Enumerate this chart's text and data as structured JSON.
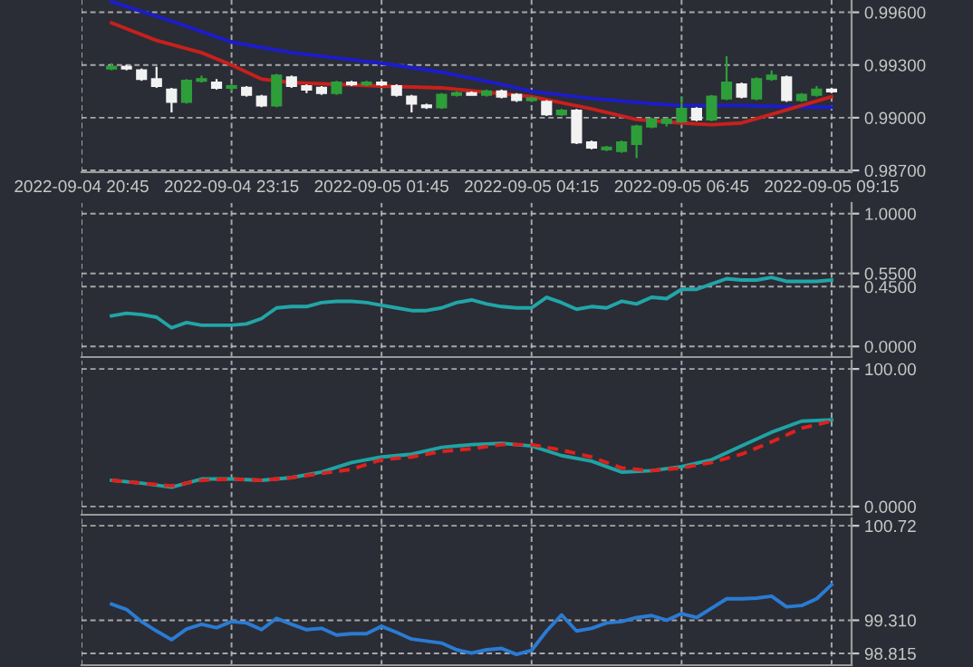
{
  "chart_data": [
    {
      "type": "candlestick",
      "x": [
        "2022-09-04T21:15",
        "2022-09-04T21:30",
        "2022-09-04T21:45",
        "2022-09-04T22:00",
        "2022-09-04T22:15",
        "2022-09-04T22:30",
        "2022-09-04T22:45",
        "2022-09-04T23:00",
        "2022-09-04T23:15",
        "2022-09-04T23:30",
        "2022-09-04T23:45",
        "2022-09-05T00:00",
        "2022-09-05T00:15",
        "2022-09-05T00:30",
        "2022-09-05T00:45",
        "2022-09-05T01:00",
        "2022-09-05T01:15",
        "2022-09-05T01:30",
        "2022-09-05T01:45",
        "2022-09-05T02:00",
        "2022-09-05T02:15",
        "2022-09-05T02:30",
        "2022-09-05T02:45",
        "2022-09-05T03:00",
        "2022-09-05T03:15",
        "2022-09-05T03:30",
        "2022-09-05T03:45",
        "2022-09-05T04:00",
        "2022-09-05T04:15",
        "2022-09-05T04:30",
        "2022-09-05T04:45",
        "2022-09-05T05:00",
        "2022-09-05T05:15",
        "2022-09-05T05:30",
        "2022-09-05T05:45",
        "2022-09-05T06:00",
        "2022-09-05T06:15",
        "2022-09-05T06:30",
        "2022-09-05T06:45",
        "2022-09-05T07:00",
        "2022-09-05T07:15",
        "2022-09-05T07:30",
        "2022-09-05T07:45",
        "2022-09-05T08:00",
        "2022-09-05T08:15",
        "2022-09-05T08:30",
        "2022-09-05T08:45",
        "2022-09-05T09:00",
        "2022-09-05T09:15"
      ],
      "ohlc": [
        [
          0.9928,
          0.9931,
          0.9927,
          0.9929
        ],
        [
          0.9929,
          0.993,
          0.9927,
          0.9928
        ],
        [
          0.9927,
          0.9928,
          0.9921,
          0.9922
        ],
        [
          0.9922,
          0.9929,
          0.9917,
          0.9918
        ],
        [
          0.9916,
          0.9917,
          0.9903,
          0.9909
        ],
        [
          0.9909,
          0.9922,
          0.9908,
          0.9921
        ],
        [
          0.9921,
          0.9924,
          0.992,
          0.9922
        ],
        [
          0.992,
          0.9922,
          0.9916,
          0.9917
        ],
        [
          0.9917,
          0.9919,
          0.9915,
          0.9918
        ],
        [
          0.9917,
          0.9918,
          0.9912,
          0.9913
        ],
        [
          0.9912,
          0.9913,
          0.9906,
          0.9907
        ],
        [
          0.9907,
          0.9925,
          0.9906,
          0.9924
        ],
        [
          0.9923,
          0.9924,
          0.9917,
          0.9918
        ],
        [
          0.9918,
          0.9919,
          0.9914,
          0.9916
        ],
        [
          0.9917,
          0.9918,
          0.9913,
          0.9914
        ],
        [
          0.9914,
          0.9921,
          0.9913,
          0.992
        ],
        [
          0.992,
          0.9921,
          0.9918,
          0.9919
        ],
        [
          0.9919,
          0.9921,
          0.9918,
          0.992
        ],
        [
          0.992,
          0.9921,
          0.9918,
          0.9919
        ],
        [
          0.9918,
          0.9919,
          0.9912,
          0.9913
        ],
        [
          0.9912,
          0.9913,
          0.9903,
          0.9908
        ],
        [
          0.9907,
          0.9908,
          0.9905,
          0.9906
        ],
        [
          0.9906,
          0.9914,
          0.9905,
          0.9913
        ],
        [
          0.9913,
          0.9915,
          0.9912,
          0.9914
        ],
        [
          0.9914,
          0.9915,
          0.9913,
          0.9913
        ],
        [
          0.9913,
          0.9916,
          0.9912,
          0.9915
        ],
        [
          0.9915,
          0.9916,
          0.9911,
          0.9912
        ],
        [
          0.9913,
          0.9914,
          0.9909,
          0.991
        ],
        [
          0.991,
          0.9912,
          0.9909,
          0.9911
        ],
        [
          0.9909,
          0.991,
          0.9901,
          0.9902
        ],
        [
          0.9902,
          0.9905,
          0.9901,
          0.9904
        ],
        [
          0.9904,
          0.9905,
          0.9885,
          0.9886
        ],
        [
          0.9886,
          0.9887,
          0.9882,
          0.9883
        ],
        [
          0.9882,
          0.9884,
          0.9881,
          0.9883
        ],
        [
          0.9881,
          0.9887,
          0.988,
          0.9886
        ],
        [
          0.9885,
          0.9896,
          0.9877,
          0.9895
        ],
        [
          0.9895,
          0.99,
          0.9894,
          0.9899
        ],
        [
          0.9897,
          0.99,
          0.9895,
          0.9899
        ],
        [
          0.9898,
          0.9912,
          0.9897,
          0.9905
        ],
        [
          0.9905,
          0.9906,
          0.9898,
          0.9899
        ],
        [
          0.9899,
          0.9913,
          0.9898,
          0.9912
        ],
        [
          0.9911,
          0.9935,
          0.991,
          0.992
        ],
        [
          0.9919,
          0.992,
          0.9911,
          0.9912
        ],
        [
          0.9911,
          0.9923,
          0.991,
          0.9922
        ],
        [
          0.9922,
          0.9927,
          0.9921,
          0.9924
        ],
        [
          0.9923,
          0.9924,
          0.9909,
          0.991
        ],
        [
          0.991,
          0.9914,
          0.9909,
          0.9913
        ],
        [
          0.9913,
          0.9918,
          0.9912,
          0.9916
        ],
        [
          0.9916,
          0.9917,
          0.9914,
          0.9915
        ]
      ],
      "colors": [
        "#2e9e3a",
        "#f2f2f2",
        "#f2f2f2",
        "#f2f2f2",
        "#f2f2f2",
        "#2e9e3a",
        "#2e9e3a",
        "#f2f2f2",
        "#2e9e3a",
        "#f2f2f2",
        "#f2f2f2",
        "#2e9e3a",
        "#f2f2f2",
        "#f2f2f2",
        "#f2f2f2",
        "#2e9e3a",
        "#f2f2f2",
        "#2e9e3a",
        "#f2f2f2",
        "#f2f2f2",
        "#f2f2f2",
        "#f2f2f2",
        "#2e9e3a",
        "#2e9e3a",
        "#f2f2f2",
        "#2e9e3a",
        "#f2f2f2",
        "#f2f2f2",
        "#2e9e3a",
        "#f2f2f2",
        "#2e9e3a",
        "#f2f2f2",
        "#f2f2f2",
        "#2e9e3a",
        "#2e9e3a",
        "#2e9e3a",
        "#2e9e3a",
        "#2e9e3a",
        "#2e9e3a",
        "#f2f2f2",
        "#2e9e3a",
        "#2e9e3a",
        "#f2f2f2",
        "#2e9e3a",
        "#2e9e3a",
        "#f2f2f2",
        "#2e9e3a",
        "#2e9e3a",
        "#f2f2f2"
      ],
      "series": [
        {
          "type": "line",
          "color": "#1c1ccc",
          "x": [
            "2022-09-04T21:15",
            "2022-09-04T22:15",
            "2022-09-04T23:15",
            "2022-09-05T00:15",
            "2022-09-05T01:15",
            "2022-09-05T01:45",
            "2022-09-05T02:45",
            "2022-09-05T03:45",
            "2022-09-05T04:15",
            "2022-09-05T05:15",
            "2022-09-05T06:15",
            "2022-09-05T06:45",
            "2022-09-05T07:45",
            "2022-09-05T08:45",
            "2022-09-05T09:15"
          ],
          "values": [
            0.9966,
            0.9955,
            0.9943,
            0.9937,
            0.9933,
            0.9931,
            0.9926,
            0.9919,
            0.9915,
            0.9911,
            0.9908,
            0.9907,
            0.9907,
            0.9906,
            0.9906
          ]
        },
        {
          "type": "line",
          "color": "#c8201c",
          "x": [
            "2022-09-04T21:15",
            "2022-09-04T22:00",
            "2022-09-04T22:45",
            "2022-09-04T23:15",
            "2022-09-04T23:45",
            "2022-09-05T00:15",
            "2022-09-05T01:45",
            "2022-09-05T02:45",
            "2022-09-05T04:15",
            "2022-09-05T05:15",
            "2022-09-05T06:00",
            "2022-09-05T06:45",
            "2022-09-05T07:15",
            "2022-09-05T07:45",
            "2022-09-05T08:15",
            "2022-09-05T08:45",
            "2022-09-05T09:15"
          ],
          "values": [
            0.9954,
            0.9944,
            0.9937,
            0.993,
            0.9922,
            0.992,
            0.9918,
            0.9917,
            0.9912,
            0.9905,
            0.9899,
            0.9897,
            0.9896,
            0.9897,
            0.9902,
            0.9907,
            0.9912
          ]
        }
      ],
      "xlim": [
        "2022-09-04T20:45",
        "2022-09-05T09:35"
      ],
      "xticks": [
        {
          "value": "2022-09-04T20:45",
          "label": "2022-09-04 20:45"
        },
        {
          "value": "2022-09-04T23:15",
          "label": "2022-09-04 23:15"
        },
        {
          "value": "2022-09-05T01:45",
          "label": "2022-09-05 01:45"
        },
        {
          "value": "2022-09-05T04:15",
          "label": "2022-09-05 04:15"
        },
        {
          "value": "2022-09-05T06:45",
          "label": "2022-09-05 06:45"
        },
        {
          "value": "2022-09-05T09:15",
          "label": "2022-09-05 09:15"
        }
      ],
      "ylim": [
        0.9869,
        0.9967
      ],
      "yticks": [
        {
          "value": 0.987,
          "label": "0.98700"
        },
        {
          "value": 0.99,
          "label": "0.99000"
        },
        {
          "value": 0.993,
          "label": "0.99300"
        },
        {
          "value": 0.996,
          "label": "0.99600"
        }
      ],
      "grid": true
    },
    {
      "type": "line",
      "x": [
        "2022-09-04T21:15",
        "2022-09-04T21:30",
        "2022-09-04T21:45",
        "2022-09-04T22:00",
        "2022-09-04T22:15",
        "2022-09-04T22:30",
        "2022-09-04T22:45",
        "2022-09-04T23:00",
        "2022-09-04T23:15",
        "2022-09-04T23:30",
        "2022-09-04T23:45",
        "2022-09-05T00:00",
        "2022-09-05T00:15",
        "2022-09-05T00:30",
        "2022-09-05T00:45",
        "2022-09-05T01:00",
        "2022-09-05T01:15",
        "2022-09-05T01:30",
        "2022-09-05T01:45",
        "2022-09-05T02:00",
        "2022-09-05T02:15",
        "2022-09-05T02:30",
        "2022-09-05T02:45",
        "2022-09-05T03:00",
        "2022-09-05T03:15",
        "2022-09-05T03:30",
        "2022-09-05T03:45",
        "2022-09-05T04:00",
        "2022-09-05T04:15",
        "2022-09-05T04:30",
        "2022-09-05T04:45",
        "2022-09-05T05:00",
        "2022-09-05T05:15",
        "2022-09-05T05:30",
        "2022-09-05T05:45",
        "2022-09-05T06:00",
        "2022-09-05T06:15",
        "2022-09-05T06:30",
        "2022-09-05T06:45",
        "2022-09-05T07:00",
        "2022-09-05T07:15",
        "2022-09-05T07:30",
        "2022-09-05T07:45",
        "2022-09-05T08:00",
        "2022-09-05T08:15",
        "2022-09-05T08:30",
        "2022-09-05T08:45",
        "2022-09-05T09:00",
        "2022-09-05T09:15"
      ],
      "series": [
        {
          "color": "#22a5a8",
          "values": [
            0.23,
            0.25,
            0.24,
            0.22,
            0.14,
            0.18,
            0.16,
            0.16,
            0.16,
            0.17,
            0.21,
            0.29,
            0.3,
            0.3,
            0.33,
            0.34,
            0.34,
            0.33,
            0.31,
            0.29,
            0.27,
            0.27,
            0.29,
            0.33,
            0.35,
            0.32,
            0.3,
            0.29,
            0.29,
            0.37,
            0.33,
            0.28,
            0.3,
            0.29,
            0.34,
            0.32,
            0.37,
            0.36,
            0.43,
            0.43,
            0.47,
            0.51,
            0.5,
            0.5,
            0.52,
            0.49,
            0.49,
            0.49,
            0.5
          ]
        }
      ],
      "xlim": [
        "2022-09-04T20:45",
        "2022-09-05T09:35"
      ],
      "xticks": [
        {
          "value": "2022-09-04T20:45",
          "label": null
        },
        {
          "value": "2022-09-04T23:15",
          "label": null
        },
        {
          "value": "2022-09-05T01:45",
          "label": null
        },
        {
          "value": "2022-09-05T04:15",
          "label": null
        },
        {
          "value": "2022-09-05T06:45",
          "label": null
        },
        {
          "value": "2022-09-05T09:15",
          "label": null
        }
      ],
      "ylim": [
        -0.08,
        1.08
      ],
      "yticks": [
        {
          "value": 0,
          "label": "0.0000"
        },
        {
          "value": 0.45,
          "label": "0.4500"
        },
        {
          "value": 0.55,
          "label": "0.5500"
        },
        {
          "value": 1,
          "label": "1.0000"
        }
      ],
      "tick_labels": "y",
      "grid": true
    },
    {
      "type": "line",
      "x": [
        "2022-09-04T21:15",
        "2022-09-04T21:45",
        "2022-09-04T22:15",
        "2022-09-04T22:45",
        "2022-09-04T23:15",
        "2022-09-04T23:45",
        "2022-09-05T00:15",
        "2022-09-05T00:45",
        "2022-09-05T01:15",
        "2022-09-05T01:45",
        "2022-09-05T02:15",
        "2022-09-05T02:45",
        "2022-09-05T03:15",
        "2022-09-05T03:45",
        "2022-09-05T04:15",
        "2022-09-05T04:45",
        "2022-09-05T05:15",
        "2022-09-05T05:45",
        "2022-09-05T06:15",
        "2022-09-05T06:45",
        "2022-09-05T07:15",
        "2022-09-05T07:45",
        "2022-09-05T08:15",
        "2022-09-05T08:45",
        "2022-09-05T09:15"
      ],
      "series": [
        {
          "color": "#1fa3a3",
          "values": [
            19,
            17,
            14,
            20,
            20,
            19,
            21,
            25,
            32,
            36,
            38,
            43,
            45,
            46,
            44,
            37,
            33,
            25,
            26,
            29,
            34,
            44,
            54,
            62,
            63
          ]
        },
        {
          "color": "#e0201c",
          "line_style": "dashed",
          "values": [
            19,
            17,
            15,
            19,
            20,
            19,
            21,
            24,
            27,
            34,
            36,
            40,
            42,
            45,
            45,
            41,
            36,
            28,
            26,
            28,
            32,
            38,
            47,
            57,
            62
          ]
        }
      ],
      "xlim": [
        "2022-09-04T20:45",
        "2022-09-05T09:35"
      ],
      "xticks": [
        {
          "value": "2022-09-04T20:45",
          "label": null
        },
        {
          "value": "2022-09-04T23:15",
          "label": null
        },
        {
          "value": "2022-09-05T01:45",
          "label": null
        },
        {
          "value": "2022-09-05T04:15",
          "label": null
        },
        {
          "value": "2022-09-05T06:45",
          "label": null
        },
        {
          "value": "2022-09-05T09:15",
          "label": null
        }
      ],
      "ylim": [
        -6,
        106
      ],
      "yticks": [
        {
          "value": 0,
          "label": "0.0000"
        },
        {
          "value": 100,
          "label": "100.00"
        }
      ],
      "tick_labels": "y",
      "grid": true
    },
    {
      "type": "line",
      "x": [
        "2022-09-04T21:15",
        "2022-09-04T21:30",
        "2022-09-04T21:45",
        "2022-09-04T22:00",
        "2022-09-04T22:15",
        "2022-09-04T22:30",
        "2022-09-04T22:45",
        "2022-09-04T23:00",
        "2022-09-04T23:15",
        "2022-09-04T23:30",
        "2022-09-04T23:45",
        "2022-09-05T00:00",
        "2022-09-05T00:15",
        "2022-09-05T00:30",
        "2022-09-05T00:45",
        "2022-09-05T01:00",
        "2022-09-05T01:15",
        "2022-09-05T01:30",
        "2022-09-05T01:45",
        "2022-09-05T02:00",
        "2022-09-05T02:15",
        "2022-09-05T02:30",
        "2022-09-05T02:45",
        "2022-09-05T03:00",
        "2022-09-05T03:15",
        "2022-09-05T03:30",
        "2022-09-05T03:45",
        "2022-09-05T04:00",
        "2022-09-05T04:15",
        "2022-09-05T04:30",
        "2022-09-05T04:45",
        "2022-09-05T05:00",
        "2022-09-05T05:15",
        "2022-09-05T05:30",
        "2022-09-05T05:45",
        "2022-09-05T06:00",
        "2022-09-05T06:15",
        "2022-09-05T06:30",
        "2022-09-05T06:45",
        "2022-09-05T07:00",
        "2022-09-05T07:15",
        "2022-09-05T07:30",
        "2022-09-05T07:45",
        "2022-09-05T08:00",
        "2022-09-05T08:15",
        "2022-09-05T08:30",
        "2022-09-05T08:45",
        "2022-09-05T09:00",
        "2022-09-05T09:15"
      ],
      "series": [
        {
          "color": "#2a7bd4",
          "values": [
            99.55,
            99.47,
            99.29,
            99.15,
            99.02,
            99.18,
            99.25,
            99.2,
            99.29,
            99.27,
            99.17,
            99.34,
            99.25,
            99.17,
            99.19,
            99.09,
            99.11,
            99.11,
            99.22,
            99.13,
            99.03,
            99.0,
            98.97,
            98.87,
            98.82,
            98.87,
            98.89,
            98.8,
            98.86,
            99.15,
            99.39,
            99.15,
            99.19,
            99.27,
            99.29,
            99.35,
            99.38,
            99.31,
            99.41,
            99.35,
            99.49,
            99.63,
            99.63,
            99.64,
            99.67,
            99.51,
            99.53,
            99.63,
            99.84
          ]
        }
      ],
      "xlim": [
        "2022-09-04T20:45",
        "2022-09-05T09:35"
      ],
      "xticks": [
        {
          "value": "2022-09-04T20:45",
          "label": null
        },
        {
          "value": "2022-09-04T23:15",
          "label": null
        },
        {
          "value": "2022-09-05T01:45",
          "label": null
        },
        {
          "value": "2022-09-05T04:15",
          "label": null
        },
        {
          "value": "2022-09-05T06:45",
          "label": null
        },
        {
          "value": "2022-09-05T09:15",
          "label": null
        }
      ],
      "ylim": [
        98.64,
        100.83
      ],
      "yticks": [
        {
          "value": 98.815,
          "label": "98.815"
        },
        {
          "value": 99.31,
          "label": "99.310"
        },
        {
          "value": 100.72,
          "label": "100.72"
        }
      ],
      "tick_labels": "y",
      "grid": true
    }
  ]
}
